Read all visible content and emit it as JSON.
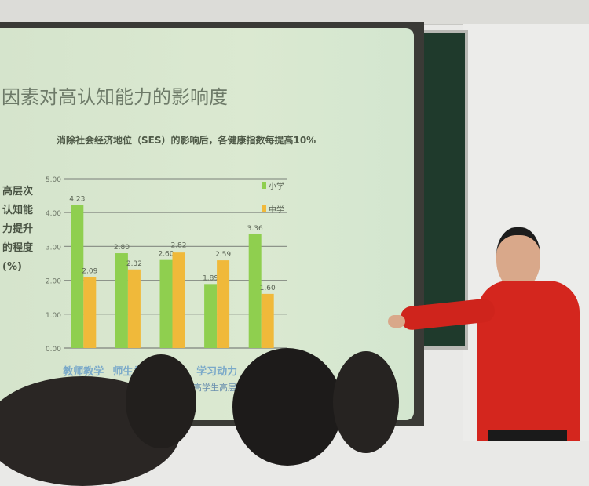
{
  "slide": {
    "title": "因素对高认知能力的影响度",
    "subtitle": "消除社会经济地位（SES）的影响后，各健康指数每提高10%",
    "footnote": "提高学生高层次"
  },
  "chart_data": {
    "type": "bar",
    "ylabel": "高层次认知能力提升的程度(%)",
    "ylim": [
      0,
      5
    ],
    "yticks": [
      "0.00",
      "1.00",
      "2.00",
      "3.00",
      "4.00",
      "5.00"
    ],
    "categories": [
      "教师教学",
      "师生关",
      "",
      "学习动力",
      ""
    ],
    "grid": true,
    "legend_position": "top-right",
    "series": [
      {
        "name": "小学",
        "color": "#8fcf4f",
        "values": [
          4.23,
          2.8,
          2.6,
          1.89,
          3.36
        ]
      },
      {
        "name": "中学",
        "color": "#f0b93a",
        "values": [
          2.09,
          2.32,
          2.82,
          2.59,
          1.6
        ]
      }
    ],
    "data_labels": [
      [
        "4.23",
        "2.80",
        "2.60",
        "1.89",
        "3.36"
      ],
      [
        "2.09",
        "2.32",
        "2.82",
        "2.59",
        "1.60"
      ]
    ]
  },
  "colors": {
    "screen": "#d8e7cf",
    "sweater": "#d4261e"
  }
}
